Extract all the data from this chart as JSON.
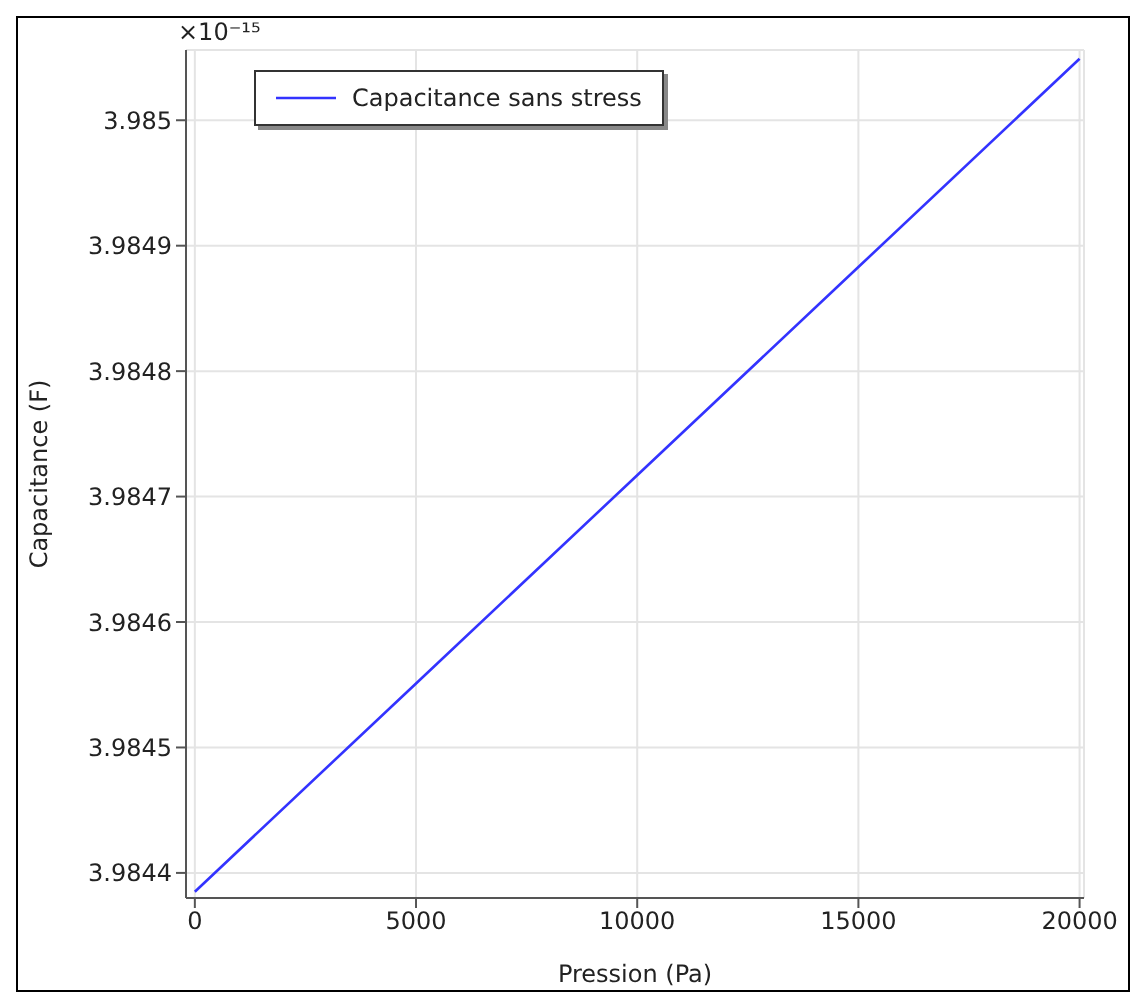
{
  "chart_data": {
    "type": "line",
    "xlabel": "Pression (Pa)",
    "ylabel": "Capacitance  (F)",
    "annotations": [
      "×10⁻¹⁵"
    ],
    "x": [
      0,
      5000,
      10000,
      15000,
      20000
    ],
    "series": [
      {
        "name": "Capacitance sans stress",
        "color": "#3333ff",
        "values": [
          3.984385,
          3.984551,
          3.984717,
          3.984883,
          3.985049
        ]
      }
    ],
    "xlim": [
      -200,
      20100
    ],
    "xticks": [
      0,
      5000,
      10000,
      15000,
      20000
    ],
    "ylim": [
      3.98438,
      3.985056
    ],
    "yticks": [
      3.9844,
      3.9845,
      3.9846,
      3.9847,
      3.9848,
      3.9849,
      3.985
    ],
    "grid": true,
    "legend": "top left",
    "marker": "none",
    "line_style": "solid"
  }
}
